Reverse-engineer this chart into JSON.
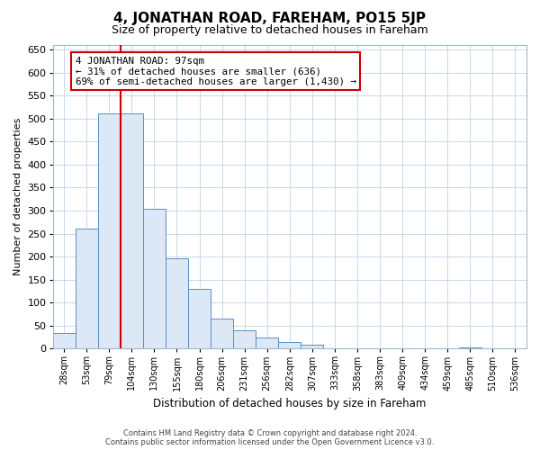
{
  "title": "4, JONATHAN ROAD, FAREHAM, PO15 5JP",
  "subtitle": "Size of property relative to detached houses in Fareham",
  "xlabel": "Distribution of detached houses by size in Fareham",
  "ylabel": "Number of detached properties",
  "bar_labels": [
    "28sqm",
    "53sqm",
    "79sqm",
    "104sqm",
    "130sqm",
    "155sqm",
    "180sqm",
    "206sqm",
    "231sqm",
    "256sqm",
    "282sqm",
    "307sqm",
    "333sqm",
    "358sqm",
    "383sqm",
    "409sqm",
    "434sqm",
    "459sqm",
    "485sqm",
    "510sqm",
    "536sqm"
  ],
  "bar_values": [
    33,
    260,
    512,
    512,
    303,
    197,
    130,
    65,
    40,
    24,
    15,
    8,
    1,
    1,
    0,
    0,
    0,
    0,
    3,
    0,
    1
  ],
  "bar_fill_color": "#dce8f5",
  "bar_edge_color": "#5b8ec5",
  "annotation_line1": "4 JONATHAN ROAD: 97sqm",
  "annotation_line2": "← 31% of detached houses are smaller (636)",
  "annotation_line3": "69% of semi-detached houses are larger (1,430) →",
  "ylim": [
    0,
    660
  ],
  "yticks": [
    0,
    50,
    100,
    150,
    200,
    250,
    300,
    350,
    400,
    450,
    500,
    550,
    600,
    650
  ],
  "footer_line1": "Contains HM Land Registry data © Crown copyright and database right 2024.",
  "footer_line2": "Contains public sector information licensed under the Open Government Licence v3.0.",
  "vline_color": "#cc0000",
  "background_color": "#ffffff",
  "grid_color": "#c8d8e8",
  "vline_x_index": 3
}
